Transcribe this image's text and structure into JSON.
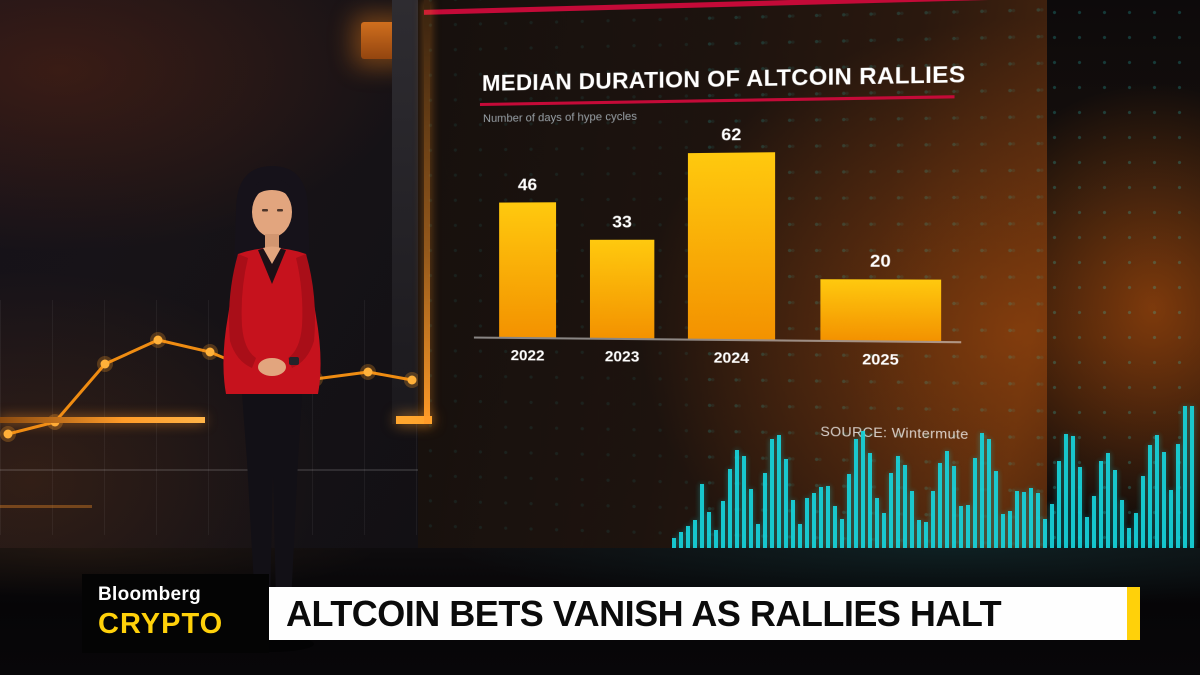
{
  "broadcast": {
    "network": "Bloomberg",
    "show": "CRYPTO",
    "headline": "ALTCOIN BETS VANISH AS RALLIES HALT"
  },
  "chart_data": {
    "type": "bar",
    "title": "MEDIAN DURATION OF ALTCOIN RALLIES",
    "subtitle": "Number of days of hype cycles",
    "categories": [
      "2022",
      "2023",
      "2024",
      "2025"
    ],
    "values": [
      46,
      33,
      62,
      20
    ],
    "source": "SOURCE: Wintermute",
    "xlabel": "",
    "ylabel": "",
    "ylim": [
      0,
      70
    ],
    "grid": false,
    "legend": false,
    "bar_color_top": "#ffc90e",
    "bar_color_bottom": "#f39200",
    "accent_line_color": "#c40a38"
  },
  "decor": {
    "wall_line_chart": {
      "type": "line",
      "x": [
        8,
        55,
        105,
        158,
        210,
        262,
        315,
        368,
        412
      ],
      "y": [
        112,
        100,
        42,
        18,
        30,
        52,
        57,
        50,
        58
      ],
      "color": "#ef8c12",
      "marker_color": "#ffb13a"
    },
    "waveform": {
      "color": "#17d6de",
      "bar_count": 75
    }
  },
  "colors": {
    "chyron_yellow": "#ffd10a",
    "banner_bg": "#fefefe",
    "headline_text": "#0b0b0b"
  }
}
